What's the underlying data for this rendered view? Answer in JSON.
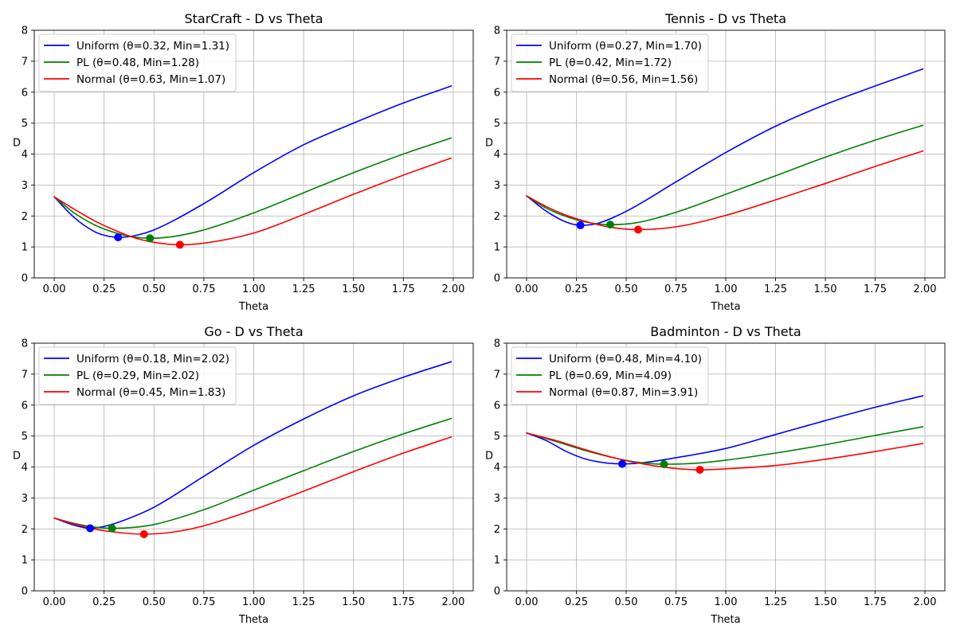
{
  "chart_data": [
    {
      "type": "line",
      "title": "StarCraft - D vs Theta",
      "xlabel": "Theta",
      "ylabel": "D",
      "xlim": [
        -0.1,
        2.1
      ],
      "ylim": [
        0,
        8
      ],
      "xticks": [
        "0.00",
        "0.25",
        "0.50",
        "0.75",
        "1.00",
        "1.25",
        "1.50",
        "1.75",
        "2.00"
      ],
      "yticks": [
        "0",
        "1",
        "2",
        "3",
        "4",
        "5",
        "6",
        "7",
        "8"
      ],
      "grid": true,
      "legend": "top-left",
      "series": [
        {
          "name": "Uniform (θ=0.32, Min=1.31)",
          "color": "#0000ff",
          "x": [
            0.0,
            0.1,
            0.2,
            0.25,
            0.32,
            0.4,
            0.5,
            0.75,
            1.0,
            1.25,
            1.5,
            1.75,
            1.99
          ],
          "y": [
            2.62,
            1.95,
            1.5,
            1.38,
            1.31,
            1.36,
            1.55,
            2.4,
            3.4,
            4.3,
            5.0,
            5.65,
            6.2
          ],
          "min_point": [
            0.32,
            1.31
          ]
        },
        {
          "name": "PL (θ=0.48, Min=1.28)",
          "color": "#008000",
          "x": [
            0.0,
            0.1,
            0.2,
            0.3,
            0.4,
            0.48,
            0.6,
            0.75,
            1.0,
            1.25,
            1.5,
            1.75,
            1.99
          ],
          "y": [
            2.62,
            2.1,
            1.72,
            1.47,
            1.32,
            1.28,
            1.34,
            1.55,
            2.1,
            2.75,
            3.4,
            4.0,
            4.52
          ],
          "min_point": [
            0.48,
            1.28
          ]
        },
        {
          "name": "Normal (θ=0.63, Min=1.07)",
          "color": "#ff0000",
          "x": [
            0.0,
            0.1,
            0.2,
            0.3,
            0.4,
            0.5,
            0.63,
            0.75,
            1.0,
            1.25,
            1.5,
            1.75,
            1.99
          ],
          "y": [
            2.62,
            2.22,
            1.85,
            1.55,
            1.3,
            1.15,
            1.07,
            1.12,
            1.45,
            2.05,
            2.7,
            3.32,
            3.87
          ],
          "min_point": [
            0.63,
            1.07
          ]
        }
      ]
    },
    {
      "type": "line",
      "title": "Tennis - D vs Theta",
      "xlabel": "Theta",
      "ylabel": "D",
      "xlim": [
        -0.1,
        2.1
      ],
      "ylim": [
        0,
        8
      ],
      "xticks": [
        "0.00",
        "0.25",
        "0.50",
        "0.75",
        "1.00",
        "1.25",
        "1.50",
        "1.75",
        "2.00"
      ],
      "yticks": [
        "0",
        "1",
        "2",
        "3",
        "4",
        "5",
        "6",
        "7",
        "8"
      ],
      "grid": true,
      "legend": "top-left",
      "series": [
        {
          "name": "Uniform (θ=0.27, Min=1.70)",
          "color": "#0000ff",
          "x": [
            0.0,
            0.1,
            0.2,
            0.27,
            0.35,
            0.5,
            0.75,
            1.0,
            1.25,
            1.5,
            1.75,
            1.99
          ],
          "y": [
            2.65,
            2.15,
            1.8,
            1.7,
            1.75,
            2.15,
            3.1,
            4.05,
            4.9,
            5.6,
            6.2,
            6.75
          ],
          "min_point": [
            0.27,
            1.7
          ]
        },
        {
          "name": "PL (θ=0.42, Min=1.72)",
          "color": "#008000",
          "x": [
            0.0,
            0.1,
            0.2,
            0.3,
            0.42,
            0.55,
            0.75,
            1.0,
            1.25,
            1.5,
            1.75,
            1.99
          ],
          "y": [
            2.65,
            2.25,
            1.98,
            1.8,
            1.72,
            1.78,
            2.12,
            2.7,
            3.3,
            3.9,
            4.45,
            4.93
          ],
          "min_point": [
            0.42,
            1.72
          ]
        },
        {
          "name": "Normal (θ=0.56, Min=1.56)",
          "color": "#ff0000",
          "x": [
            0.0,
            0.1,
            0.2,
            0.3,
            0.4,
            0.56,
            0.75,
            1.0,
            1.25,
            1.5,
            1.75,
            1.99
          ],
          "y": [
            2.65,
            2.3,
            2.02,
            1.82,
            1.66,
            1.56,
            1.65,
            2.02,
            2.52,
            3.05,
            3.6,
            4.1
          ],
          "min_point": [
            0.56,
            1.56
          ]
        }
      ]
    },
    {
      "type": "line",
      "title": "Go - D vs Theta",
      "xlabel": "Theta",
      "ylabel": "D",
      "xlim": [
        -0.1,
        2.1
      ],
      "ylim": [
        0,
        8
      ],
      "xticks": [
        "0.00",
        "0.25",
        "0.50",
        "0.75",
        "1.00",
        "1.25",
        "1.50",
        "1.75",
        "2.00"
      ],
      "yticks": [
        "0",
        "1",
        "2",
        "3",
        "4",
        "5",
        "6",
        "7",
        "8"
      ],
      "grid": true,
      "legend": "top-left",
      "series": [
        {
          "name": "Uniform (θ=0.18, Min=2.02)",
          "color": "#0000ff",
          "x": [
            0.0,
            0.1,
            0.18,
            0.25,
            0.35,
            0.5,
            0.75,
            1.0,
            1.25,
            1.5,
            1.75,
            1.99
          ],
          "y": [
            2.35,
            2.12,
            2.02,
            2.08,
            2.28,
            2.7,
            3.7,
            4.7,
            5.55,
            6.3,
            6.9,
            7.4
          ],
          "min_point": [
            0.18,
            2.02
          ]
        },
        {
          "name": "PL (θ=0.29, Min=2.02)",
          "color": "#008000",
          "x": [
            0.0,
            0.1,
            0.2,
            0.29,
            0.4,
            0.5,
            0.75,
            1.0,
            1.25,
            1.5,
            1.75,
            1.99
          ],
          "y": [
            2.35,
            2.18,
            2.06,
            2.02,
            2.05,
            2.14,
            2.62,
            3.25,
            3.88,
            4.5,
            5.07,
            5.57
          ],
          "min_point": [
            0.29,
            2.02
          ]
        },
        {
          "name": "Normal (θ=0.45, Min=1.83)",
          "color": "#ff0000",
          "x": [
            0.0,
            0.1,
            0.2,
            0.3,
            0.45,
            0.6,
            0.75,
            1.0,
            1.25,
            1.5,
            1.75,
            1.99
          ],
          "y": [
            2.35,
            2.16,
            2.0,
            1.9,
            1.83,
            1.9,
            2.1,
            2.62,
            3.22,
            3.85,
            4.45,
            4.97
          ],
          "min_point": [
            0.45,
            1.83
          ]
        }
      ]
    },
    {
      "type": "line",
      "title": "Badminton - D vs Theta",
      "xlabel": "Theta",
      "ylabel": "D",
      "xlim": [
        -0.1,
        2.1
      ],
      "ylim": [
        0,
        8
      ],
      "xticks": [
        "0.00",
        "0.25",
        "0.50",
        "0.75",
        "1.00",
        "1.25",
        "1.50",
        "1.75",
        "2.00"
      ],
      "yticks": [
        "0",
        "1",
        "2",
        "3",
        "4",
        "5",
        "6",
        "7",
        "8"
      ],
      "grid": true,
      "legend": "top-left",
      "series": [
        {
          "name": "Uniform (θ=0.48, Min=4.10)",
          "color": "#0000ff",
          "x": [
            0.0,
            0.1,
            0.2,
            0.3,
            0.4,
            0.48,
            0.6,
            0.75,
            1.0,
            1.25,
            1.5,
            1.75,
            1.99
          ],
          "y": [
            5.1,
            4.85,
            4.5,
            4.25,
            4.13,
            4.1,
            4.15,
            4.3,
            4.6,
            5.05,
            5.5,
            5.93,
            6.3
          ],
          "min_point": [
            0.48,
            4.1
          ]
        },
        {
          "name": "PL (θ=0.69, Min=4.09)",
          "color": "#008000",
          "x": [
            0.0,
            0.15,
            0.3,
            0.45,
            0.55,
            0.69,
            0.85,
            1.0,
            1.25,
            1.5,
            1.75,
            1.99
          ],
          "y": [
            5.1,
            4.82,
            4.52,
            4.28,
            4.16,
            4.09,
            4.12,
            4.22,
            4.45,
            4.72,
            5.02,
            5.3
          ],
          "min_point": [
            0.69,
            4.09
          ]
        },
        {
          "name": "Normal (θ=0.87, Min=3.91)",
          "color": "#ff0000",
          "x": [
            0.0,
            0.15,
            0.3,
            0.45,
            0.6,
            0.75,
            0.87,
            1.0,
            1.25,
            1.5,
            1.75,
            1.99
          ],
          "y": [
            5.1,
            4.85,
            4.55,
            4.28,
            4.08,
            3.95,
            3.91,
            3.94,
            4.05,
            4.25,
            4.5,
            4.76
          ],
          "min_point": [
            0.87,
            3.91
          ]
        }
      ]
    }
  ]
}
